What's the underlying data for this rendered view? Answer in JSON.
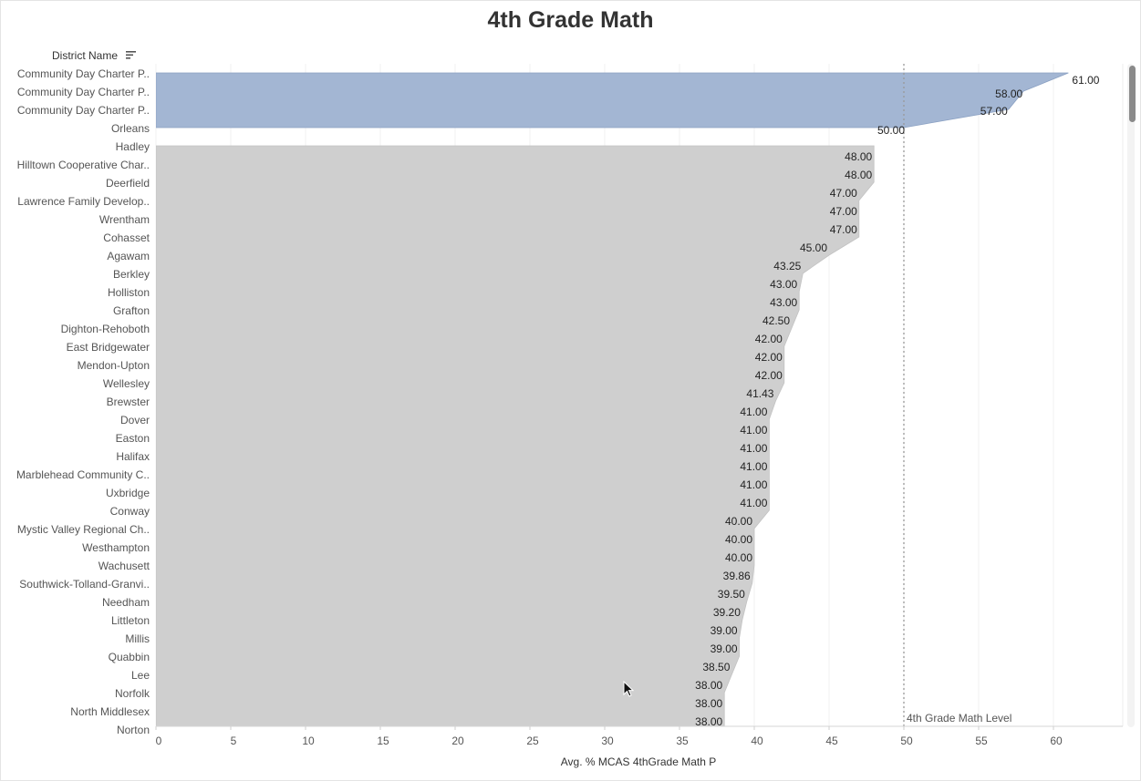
{
  "title": "4th Grade Math",
  "column_header": "District Name",
  "icons": {
    "sort": "sort-descending-icon",
    "cursor": "mouse-pointer-icon"
  },
  "colors": {
    "highlight": "#a3b6d3",
    "base": "#cfcfcf",
    "reference_line": "#999999"
  },
  "chart_data": {
    "type": "area",
    "orientation": "horizontal",
    "title": "4th Grade Math",
    "xlabel": "Avg. % MCAS 4thGrade Math P",
    "ylabel": "District Name",
    "xlim": [
      0,
      64
    ],
    "xticks": [
      0,
      5,
      10,
      15,
      20,
      25,
      30,
      35,
      40,
      45,
      50,
      55,
      60
    ],
    "grid": true,
    "reference_line": {
      "value": 50,
      "label": "4th Grade Math Level"
    },
    "highlight_group": [
      {
        "name": "Community Day Charter P..",
        "value": 61.0
      },
      {
        "name": "Community Day Charter P..",
        "value": 58.0
      },
      {
        "name": "Community Day Charter P..",
        "value": 57.0
      },
      {
        "name": "Orleans",
        "value": 50.0
      }
    ],
    "categories": [
      "Hadley",
      "Hilltown Cooperative Char..",
      "Deerfield",
      "Lawrence Family Develop..",
      "Wrentham",
      "Cohasset",
      "Agawam",
      "Berkley",
      "Holliston",
      "Grafton",
      "Dighton-Rehoboth",
      "East Bridgewater",
      "Mendon-Upton",
      "Wellesley",
      "Brewster",
      "Dover",
      "Easton",
      "Halifax",
      "Marblehead Community C..",
      "Uxbridge",
      "Conway",
      "Mystic Valley Regional Ch..",
      "Westhampton",
      "Wachusett",
      "Southwick-Tolland-Granvi..",
      "Needham",
      "Littleton",
      "Millis",
      "Quabbin",
      "Lee",
      "Norfolk",
      "North Middlesex",
      "Norton"
    ],
    "values": [
      48.0,
      48.0,
      47.0,
      47.0,
      47.0,
      45.0,
      43.25,
      43.0,
      43.0,
      42.5,
      42.0,
      42.0,
      42.0,
      41.43,
      41.0,
      41.0,
      41.0,
      41.0,
      41.0,
      41.0,
      40.0,
      40.0,
      40.0,
      39.86,
      39.5,
      39.2,
      39.0,
      39.0,
      38.5,
      38.0,
      38.0,
      38.0,
      38.0
    ],
    "data_labels": [
      "48.00",
      "48.00",
      "47.00",
      "47.00",
      "47.00",
      "45.00",
      "43.25",
      "43.00",
      "43.00",
      "42.50",
      "42.00",
      "42.00",
      "42.00",
      "41.43",
      "41.00",
      "41.00",
      "41.00",
      "41.00",
      "41.00",
      "41.00",
      "40.00",
      "40.00",
      "40.00",
      "39.86",
      "39.50",
      "39.20",
      "39.00",
      "39.00",
      "38.50",
      "38.00",
      "38.00",
      "38.00",
      "38.00"
    ],
    "highlight_labels": [
      "61.00",
      "58.00",
      "57.00",
      "50.00"
    ]
  }
}
